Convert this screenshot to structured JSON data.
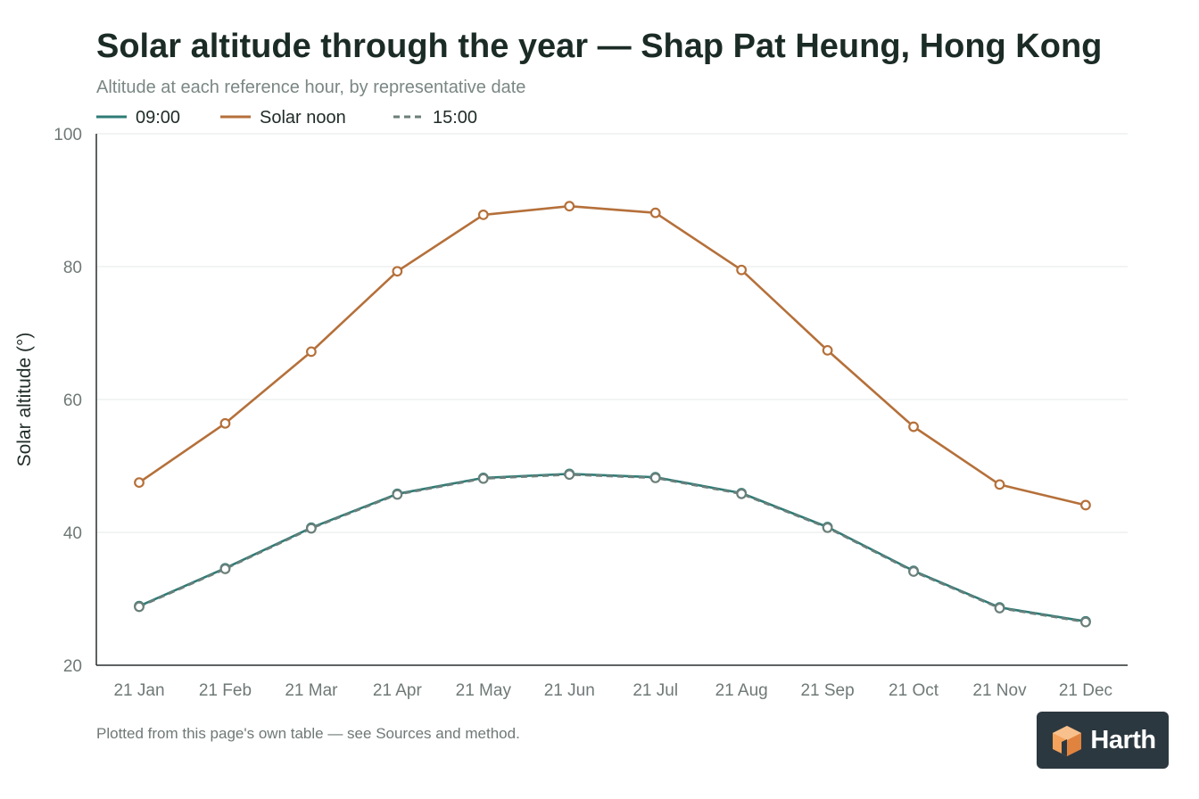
{
  "chart_data": {
    "type": "line",
    "title": "Solar altitude through the year — Shap Pat Heung, Hong Kong",
    "subtitle": "Altitude at each reference hour, by representative date",
    "ylabel": "Solar altitude (°)",
    "xlabel": "",
    "categories": [
      "21 Jan",
      "21 Feb",
      "21 Mar",
      "21 Apr",
      "21 May",
      "21 Jun",
      "21 Jul",
      "21 Aug",
      "21 Sep",
      "21 Oct",
      "21 Nov",
      "21 Dec"
    ],
    "ylim": [
      20,
      100
    ],
    "yticks": [
      20,
      40,
      60,
      80,
      100
    ],
    "grid": true,
    "legend_position": "top-left",
    "series": [
      {
        "name": "09:00",
        "color": "#2e7b76",
        "style": "solid",
        "values": [
          28.9,
          34.6,
          40.7,
          45.8,
          48.2,
          48.8,
          48.3,
          45.9,
          40.8,
          34.2,
          28.7,
          26.6
        ]
      },
      {
        "name": "Solar noon",
        "color": "#b5703a",
        "style": "solid",
        "values": [
          47.5,
          56.4,
          67.2,
          79.3,
          87.8,
          89.1,
          88.1,
          79.5,
          67.4,
          55.9,
          47.2,
          44.1
        ]
      },
      {
        "name": "15:00",
        "color": "#6b7f7a",
        "style": "dashed",
        "values": [
          28.8,
          34.5,
          40.6,
          45.7,
          48.1,
          48.7,
          48.2,
          45.8,
          40.7,
          34.1,
          28.6,
          26.5
        ]
      }
    ],
    "footnote": "Plotted from this page's own table — see Sources and method."
  },
  "brand": {
    "name": "Harth",
    "accent": "#f4a25c"
  }
}
